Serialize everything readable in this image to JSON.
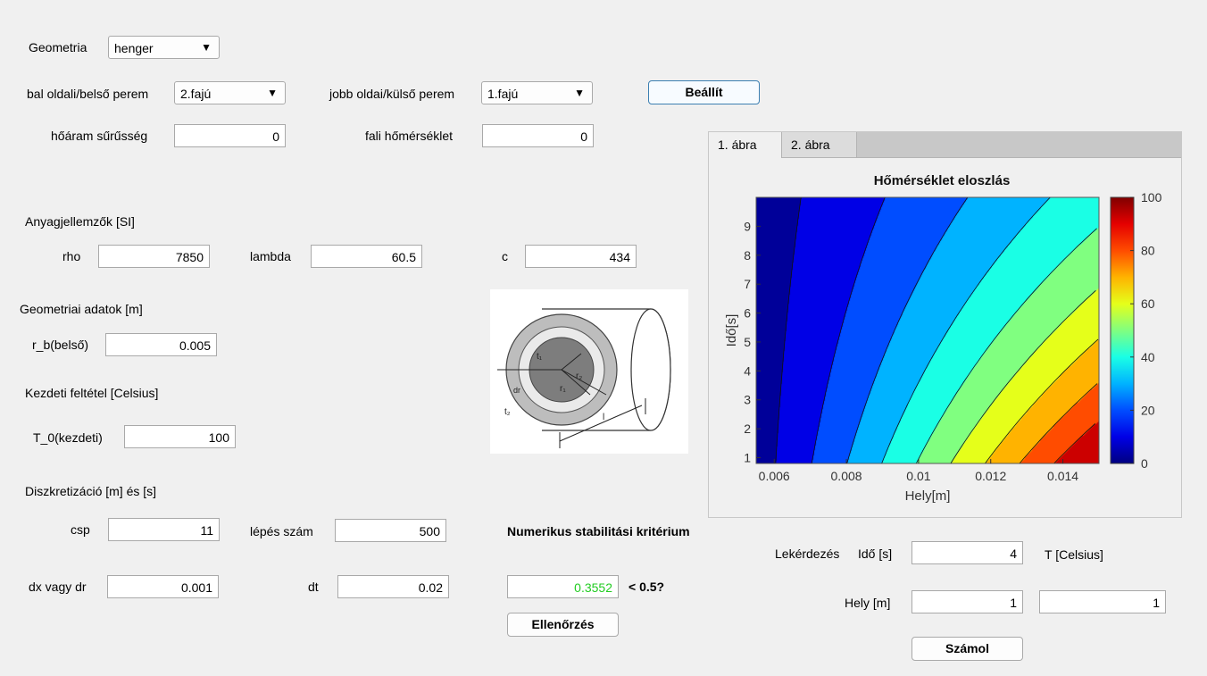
{
  "geometry": {
    "label": "Geometria",
    "selected": "henger"
  },
  "boundary": {
    "left_label": "bal oldali/belső perem",
    "left_selected": "2.fajú",
    "right_label": "jobb oldai/külső perem",
    "right_selected": "1.fajú",
    "set_button": "Beállít",
    "flux_label": "hőáram sűrűsség",
    "flux_value": "0",
    "wall_temp_label": "fali hőmérséklet",
    "wall_temp_value": "0"
  },
  "material": {
    "title": "Anyagjellemzők [SI]",
    "rho_label": "rho",
    "rho_value": "7850",
    "lambda_label": "lambda",
    "lambda_value": "60.5",
    "c_label": "c",
    "c_value": "434"
  },
  "geom_data": {
    "title": "Geometriai adatok [m]",
    "rb_label": "r_b(belső)",
    "rb_value": "0.005"
  },
  "initial": {
    "title": "Kezdeti feltétel [Celsius]",
    "t0_label": "T_0(kezdeti)",
    "t0_value": "100"
  },
  "discretization": {
    "title": "Diszkretizáció [m] és [s]",
    "csp_label": "csp",
    "csp_value": "11",
    "steps_label": "lépés szám",
    "steps_value": "500",
    "dx_label": "dx vagy dr",
    "dx_value": "0.001",
    "dt_label": "dt",
    "dt_value": "0.02"
  },
  "stability": {
    "title": "Numerikus stabilitási kritérium",
    "value": "0.3552",
    "compare": "< 0.5?",
    "check_button": "Ellenőrzés",
    "value_color": "#22cc22"
  },
  "tabs": [
    "1. ábra",
    "2. ábra"
  ],
  "query": {
    "title": "Lekérdezés",
    "time_label": "Idő [s]",
    "time_value": "4",
    "temp_label": "T [Celsius]",
    "pos_label": "Hely [m]",
    "pos_value": "1",
    "result_value": "1",
    "compute_button": "Számol"
  },
  "diagram": {
    "label_r1": "r₁",
    "label_r2": "r₂",
    "label_t1": "t₁",
    "label_t2": "t₂",
    "label_dr": "dr",
    "label_l": "l"
  },
  "chart_data": {
    "type": "heatmap",
    "title": "Hőmérséklet eloszlás",
    "xlabel": "Hely[m]",
    "ylabel": "Idő[s]",
    "xlim": [
      0.0055,
      0.015
    ],
    "ylim": [
      0.8,
      10.0
    ],
    "xticks": [
      "0.006",
      "0.008",
      "0.01",
      "0.012",
      "0.014"
    ],
    "yticks": [
      "1",
      "2",
      "3",
      "4",
      "5",
      "6",
      "7",
      "8",
      "9"
    ],
    "colorbar": {
      "range": [
        0,
        100
      ],
      "ticks": [
        "0",
        "20",
        "40",
        "60",
        "80",
        "100"
      ],
      "colormap": "jet"
    },
    "contour_levels": [
      5,
      15,
      25,
      35,
      45,
      55,
      65,
      75,
      85
    ]
  }
}
